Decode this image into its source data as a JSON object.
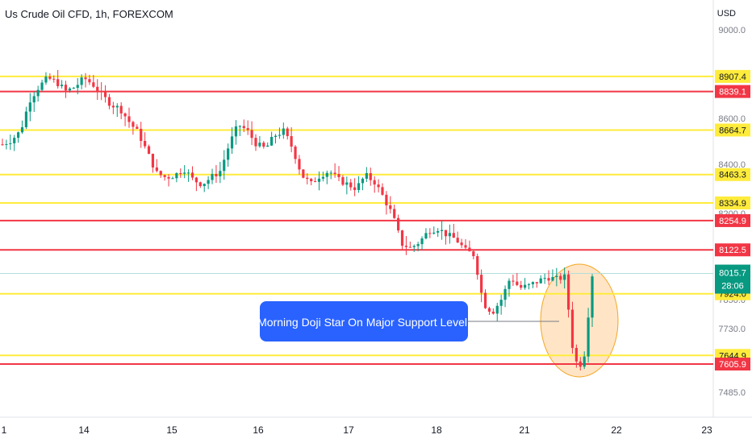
{
  "chart_title": "Us Crude Oil CFD, 1h, FOREXCOM",
  "currency": "USD",
  "price_tag": {
    "price": "8015.7",
    "countdown": "28:06"
  },
  "annotation": "Morning Doji Star On Major Support Level.",
  "colors": {
    "up": "#089981",
    "down": "#f23645",
    "yellow_line": "#ffeb3b",
    "red_line": "#f23645",
    "callout": "#2962ff",
    "highlight_fill": "#ffd7a8",
    "highlight_stroke": "#f5a623",
    "axis_text": "#131722"
  },
  "chart_data": {
    "type": "candlestick",
    "title": "Us Crude Oil CFD, 1h, FOREXCOM",
    "y_axis": {
      "unit": "USD",
      "tick_labels": [
        "9000.0",
        "8800.0",
        "8600.0",
        "8400.0",
        "8200.0",
        "7850.0",
        "7730.0",
        "7485.0"
      ],
      "range": [
        7440,
        9060
      ]
    },
    "x_axis": {
      "tick_labels": [
        "1",
        "14",
        "15",
        "16",
        "17",
        "18",
        "21",
        "22",
        "23"
      ]
    },
    "levels": [
      {
        "label": "8907.4",
        "value": 8907.4,
        "color": "yellow"
      },
      {
        "label": "8839.1",
        "value": 8839.1,
        "color": "red"
      },
      {
        "label": "8664.7",
        "value": 8664.7,
        "color": "yellow"
      },
      {
        "label": "8463.3",
        "value": 8463.3,
        "color": "yellow"
      },
      {
        "label": "8334.9",
        "value": 8334.9,
        "color": "yellow"
      },
      {
        "label": "8254.9",
        "value": 8254.9,
        "color": "red"
      },
      {
        "label": "8122.5",
        "value": 8122.5,
        "color": "red"
      },
      {
        "label": "7924.0",
        "value": 7924.0,
        "color": "yellow"
      },
      {
        "label": "7644.9",
        "value": 7644.9,
        "color": "yellow"
      },
      {
        "label": "7605.9",
        "value": 7605.9,
        "color": "red"
      }
    ],
    "last_price": 8015.7,
    "price_path": [
      8600,
      8620,
      8660,
      8800,
      8860,
      8900,
      8880,
      8840,
      8860,
      8900,
      8870,
      8820,
      8780,
      8760,
      8700,
      8650,
      8560,
      8470,
      8450,
      8460,
      8490,
      8440,
      8420,
      8450,
      8480,
      8600,
      8690,
      8660,
      8600,
      8580,
      8640,
      8660,
      8580,
      8460,
      8420,
      8460,
      8480,
      8440,
      8420,
      8400,
      8460,
      8430,
      8360,
      8280,
      8150,
      8130,
      8160,
      8210,
      8220,
      8190,
      8170,
      8120,
      8100,
      7880,
      7840,
      7900,
      8000,
      7950,
      7960,
      7980,
      8000,
      7990,
      8000,
      7620,
      7600,
      8010
    ]
  }
}
